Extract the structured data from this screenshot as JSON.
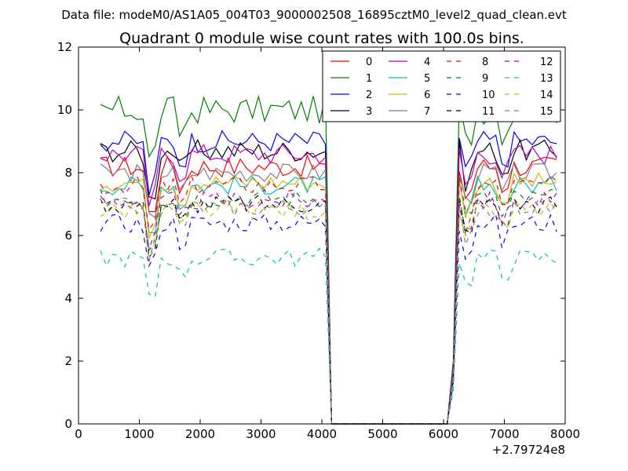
{
  "chart_data": {
    "type": "line",
    "suptitle": "Data file: modeM0/AS1A05_004T03_9000002508_16895cztM0_level2_quad_clean.evt",
    "title": "Quadrant 0 module wise count rates with 100.0s bins.",
    "xlabel": "",
    "ylabel": "",
    "xlim": [
      0,
      8000
    ],
    "ylim": [
      0,
      12
    ],
    "x_offset_label": "+2.79724e8",
    "xticks": [
      0,
      1000,
      2000,
      3000,
      4000,
      5000,
      6000,
      7000,
      8000
    ],
    "yticks": [
      0,
      2,
      4,
      6,
      8,
      10,
      12
    ],
    "legend_position": "top-right",
    "segments": [
      {
        "x_start": 360,
        "x_end": 4060,
        "step": 100,
        "drop_to": 4160
      },
      {
        "x_start": 6160,
        "x_end": 7860,
        "step": 100,
        "rise_from": 6060
      }
    ],
    "series": [
      {
        "name": "0",
        "color": "#ff0000",
        "dash": false,
        "level": 8.2,
        "amp": 0.35
      },
      {
        "name": "1",
        "color": "#008000",
        "dash": false,
        "level": 10.0,
        "amp": 0.45
      },
      {
        "name": "2",
        "color": "#0000ff",
        "dash": false,
        "level": 9.0,
        "amp": 0.35
      },
      {
        "name": "3",
        "color": "#000000",
        "dash": false,
        "level": 8.7,
        "amp": 0.35
      },
      {
        "name": "4",
        "color": "#bf00bf",
        "dash": false,
        "level": 8.6,
        "amp": 0.35
      },
      {
        "name": "5",
        "color": "#00bfbf",
        "dash": false,
        "level": 7.6,
        "amp": 0.3
      },
      {
        "name": "6",
        "color": "#bfbf00",
        "dash": false,
        "level": 7.7,
        "amp": 0.3
      },
      {
        "name": "7",
        "color": "#808080",
        "dash": false,
        "level": 8.0,
        "amp": 0.3
      },
      {
        "name": "8",
        "color": "#ff0000",
        "dash": true,
        "level": 7.6,
        "amp": 0.3
      },
      {
        "name": "9",
        "color": "#008000",
        "dash": true,
        "level": 7.2,
        "amp": 0.3
      },
      {
        "name": "10",
        "color": "#0000ff",
        "dash": true,
        "level": 6.4,
        "amp": 0.3
      },
      {
        "name": "11",
        "color": "#000000",
        "dash": true,
        "level": 7.0,
        "amp": 0.3
      },
      {
        "name": "12",
        "color": "#bf00bf",
        "dash": true,
        "level": 7.1,
        "amp": 0.3
      },
      {
        "name": "13",
        "color": "#00bfbf",
        "dash": true,
        "level": 5.3,
        "amp": 0.3
      },
      {
        "name": "14",
        "color": "#bfbf00",
        "dash": true,
        "level": 6.8,
        "amp": 0.3
      },
      {
        "name": "15",
        "color": "#808080",
        "dash": true,
        "level": 6.9,
        "amp": 0.3
      }
    ],
    "dips": [
      {
        "x": 1200,
        "depth": 2.2,
        "width": 150
      },
      {
        "x": 1700,
        "depth": 1.0,
        "width": 120
      },
      {
        "x": 6400,
        "depth": 1.5,
        "width": 120
      },
      {
        "x": 7000,
        "depth": 1.0,
        "width": 120
      }
    ]
  }
}
